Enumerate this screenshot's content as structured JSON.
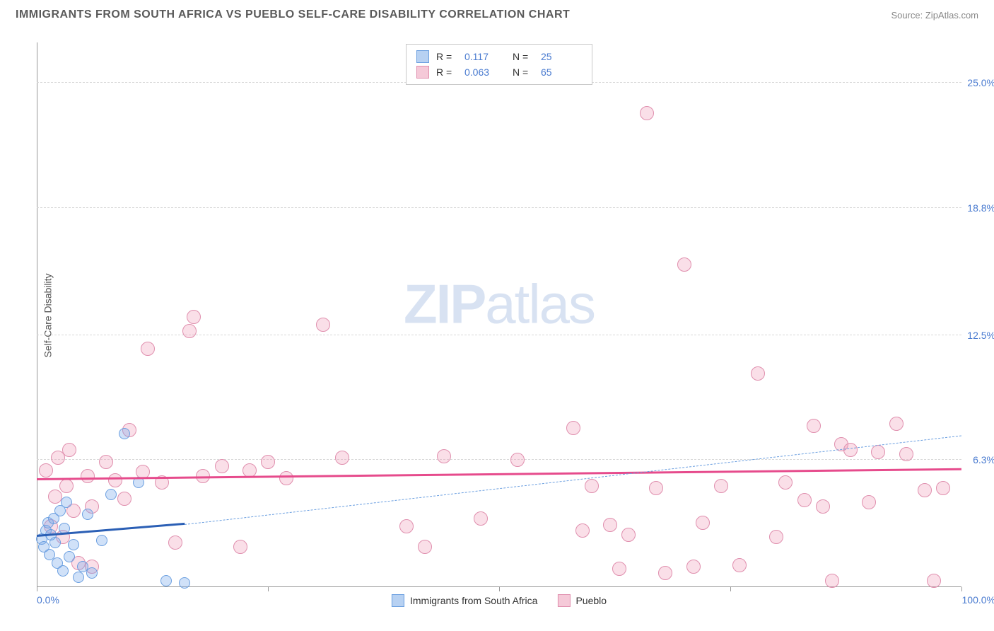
{
  "header": {
    "title": "IMMIGRANTS FROM SOUTH AFRICA VS PUEBLO SELF-CARE DISABILITY CORRELATION CHART",
    "source": "Source: ZipAtlas.com"
  },
  "axes": {
    "y_label": "Self-Care Disability",
    "x_min_label": "0.0%",
    "x_max_label": "100.0%",
    "y_ticks": [
      {
        "v": 6.3,
        "label": "6.3%"
      },
      {
        "v": 12.5,
        "label": "12.5%"
      },
      {
        "v": 18.8,
        "label": "18.8%"
      },
      {
        "v": 25.0,
        "label": "25.0%"
      }
    ],
    "x_ticks_minor": [
      0,
      25,
      50,
      75,
      100
    ],
    "xlim": [
      0,
      100
    ],
    "ylim": [
      0,
      27
    ]
  },
  "watermark": {
    "zip": "ZIP",
    "atlas": "atlas"
  },
  "series": {
    "a": {
      "name": "Immigrants from South Africa",
      "color_fill": "rgba(120,170,235,0.35)",
      "color_stroke": "#6b9fe0",
      "swatch_fill": "#b7d1f2",
      "swatch_border": "#6b9fe0",
      "r_label": "R =",
      "r_value": "0.117",
      "n_label": "N =",
      "n_value": "25",
      "marker_radius": 8,
      "trend": {
        "solid": {
          "x1": 0,
          "y1": 2.5,
          "x2": 16,
          "y2": 3.1,
          "color": "#2b5fb5",
          "width": 3
        },
        "dash": {
          "x1": 16,
          "y1": 3.1,
          "x2": 100,
          "y2": 7.5,
          "color": "#6b9fe0",
          "width": 1.5
        }
      },
      "points": [
        {
          "x": 0.5,
          "y": 2.4
        },
        {
          "x": 0.8,
          "y": 2.0
        },
        {
          "x": 1.0,
          "y": 2.8
        },
        {
          "x": 1.2,
          "y": 3.2
        },
        {
          "x": 1.4,
          "y": 1.6
        },
        {
          "x": 1.5,
          "y": 2.6
        },
        {
          "x": 1.8,
          "y": 3.4
        },
        {
          "x": 2.0,
          "y": 2.2
        },
        {
          "x": 2.2,
          "y": 1.2
        },
        {
          "x": 2.5,
          "y": 3.8
        },
        {
          "x": 2.8,
          "y": 0.8
        },
        {
          "x": 3.0,
          "y": 2.9
        },
        {
          "x": 3.2,
          "y": 4.2
        },
        {
          "x": 3.5,
          "y": 1.5
        },
        {
          "x": 4.0,
          "y": 2.1
        },
        {
          "x": 4.5,
          "y": 0.5
        },
        {
          "x": 5.0,
          "y": 1.0
        },
        {
          "x": 5.5,
          "y": 3.6
        },
        {
          "x": 6.0,
          "y": 0.7
        },
        {
          "x": 7.0,
          "y": 2.3
        },
        {
          "x": 8.0,
          "y": 4.6
        },
        {
          "x": 9.5,
          "y": 7.6
        },
        {
          "x": 11.0,
          "y": 5.2
        },
        {
          "x": 14.0,
          "y": 0.3
        },
        {
          "x": 16.0,
          "y": 0.2
        }
      ]
    },
    "b": {
      "name": "Pueblo",
      "color_fill": "rgba(240,150,180,0.30)",
      "color_stroke": "#e08fae",
      "swatch_fill": "#f5c9d8",
      "swatch_border": "#e08fae",
      "r_label": "R =",
      "r_value": "0.063",
      "n_label": "N =",
      "n_value": "65",
      "marker_radius": 10,
      "trend": {
        "solid": {
          "x1": 0,
          "y1": 5.3,
          "x2": 100,
          "y2": 5.8,
          "color": "#e64b8c",
          "width": 3
        }
      },
      "points": [
        {
          "x": 1.0,
          "y": 5.8
        },
        {
          "x": 1.5,
          "y": 3.0
        },
        {
          "x": 2.0,
          "y": 4.5
        },
        {
          "x": 2.3,
          "y": 6.4
        },
        {
          "x": 2.8,
          "y": 2.5
        },
        {
          "x": 3.2,
          "y": 5.0
        },
        {
          "x": 3.5,
          "y": 6.8
        },
        {
          "x": 4.0,
          "y": 3.8
        },
        {
          "x": 4.5,
          "y": 1.2
        },
        {
          "x": 5.5,
          "y": 5.5
        },
        {
          "x": 6.0,
          "y": 4.0
        },
        {
          "x": 6.0,
          "y": 1.0
        },
        {
          "x": 7.5,
          "y": 6.2
        },
        {
          "x": 8.5,
          "y": 5.3
        },
        {
          "x": 9.5,
          "y": 4.4
        },
        {
          "x": 10.0,
          "y": 7.8
        },
        {
          "x": 11.5,
          "y": 5.7
        },
        {
          "x": 12.0,
          "y": 11.8
        },
        {
          "x": 13.5,
          "y": 5.2
        },
        {
          "x": 15.0,
          "y": 2.2
        },
        {
          "x": 16.5,
          "y": 12.7
        },
        {
          "x": 17.0,
          "y": 13.4
        },
        {
          "x": 18.0,
          "y": 5.5
        },
        {
          "x": 20.0,
          "y": 6.0
        },
        {
          "x": 22.0,
          "y": 2.0
        },
        {
          "x": 23.0,
          "y": 5.8
        },
        {
          "x": 25.0,
          "y": 6.2
        },
        {
          "x": 27.0,
          "y": 5.4
        },
        {
          "x": 31.0,
          "y": 13.0
        },
        {
          "x": 33.0,
          "y": 6.4
        },
        {
          "x": 40.0,
          "y": 3.0
        },
        {
          "x": 42.0,
          "y": 2.0
        },
        {
          "x": 44.0,
          "y": 6.5
        },
        {
          "x": 48.0,
          "y": 3.4
        },
        {
          "x": 52.0,
          "y": 6.3
        },
        {
          "x": 58.0,
          "y": 7.9
        },
        {
          "x": 59.0,
          "y": 2.8
        },
        {
          "x": 60.0,
          "y": 5.0
        },
        {
          "x": 62.0,
          "y": 3.1
        },
        {
          "x": 63.0,
          "y": 0.9
        },
        {
          "x": 64.0,
          "y": 2.6
        },
        {
          "x": 66.0,
          "y": 23.5
        },
        {
          "x": 67.0,
          "y": 4.9
        },
        {
          "x": 68.0,
          "y": 0.7
        },
        {
          "x": 70.0,
          "y": 16.0
        },
        {
          "x": 71.0,
          "y": 1.0
        },
        {
          "x": 72.0,
          "y": 3.2
        },
        {
          "x": 74.0,
          "y": 5.0
        },
        {
          "x": 76.0,
          "y": 1.1
        },
        {
          "x": 78.0,
          "y": 10.6
        },
        {
          "x": 80.0,
          "y": 2.5
        },
        {
          "x": 81.0,
          "y": 5.2
        },
        {
          "x": 83.0,
          "y": 4.3
        },
        {
          "x": 84.0,
          "y": 8.0
        },
        {
          "x": 85.0,
          "y": 4.0
        },
        {
          "x": 86.0,
          "y": 0.3
        },
        {
          "x": 87.0,
          "y": 7.1
        },
        {
          "x": 88.0,
          "y": 6.8
        },
        {
          "x": 90.0,
          "y": 4.2
        },
        {
          "x": 91.0,
          "y": 6.7
        },
        {
          "x": 93.0,
          "y": 8.1
        },
        {
          "x": 94.0,
          "y": 6.6
        },
        {
          "x": 96.0,
          "y": 4.8
        },
        {
          "x": 97.0,
          "y": 0.3
        },
        {
          "x": 98.0,
          "y": 4.9
        }
      ]
    }
  },
  "colors": {
    "title": "#5a5a5a",
    "source": "#888888",
    "tick_value": "#4a7bd0",
    "grid": "#d8d8d8",
    "axis": "#999999",
    "background": "#ffffff"
  }
}
